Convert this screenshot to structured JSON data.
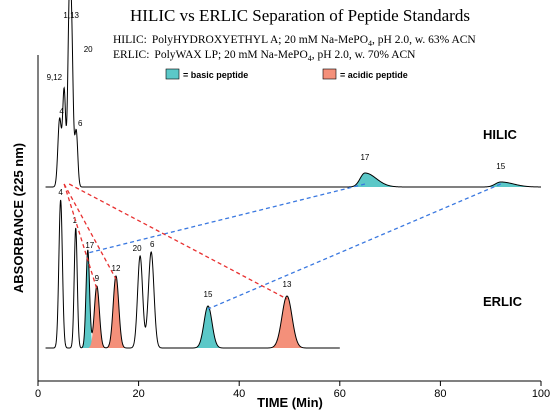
{
  "title": "HILIC vs ERLIC Separation of Peptide Standards",
  "conditions": {
    "hilic": {
      "prefix": "HILIC:",
      "text_a": "PolyHYDROXYETHYL A; 20 mM Na-MePO",
      "sub": "4",
      "text_b": ", pH 2.0, w. 63% ACN"
    },
    "erlic": {
      "prefix": "ERLIC:",
      "text_a": "PolyWAX LP; 20 mM Na-MePO",
      "sub": "4",
      "text_b": ", pH 2.0, w. 70% ACN"
    }
  },
  "legend": [
    {
      "label": "= basic peptide",
      "color": "#5bc8c8"
    },
    {
      "label": "= acidic peptide",
      "color": "#f4907a"
    }
  ],
  "colors": {
    "trace": "#000000",
    "hilic_link": "#e83030",
    "erlic_link": "#3a78e0"
  },
  "chart_data": {
    "type": "line",
    "xlabel": "TIME (Min)",
    "ylabel": "ABSORBANCE (225 nm)",
    "xlim": [
      0,
      100
    ],
    "xticks": [
      0,
      20,
      40,
      60,
      80,
      100
    ],
    "series": [
      {
        "name": "HILIC",
        "x_end": 100,
        "peaks": [
          {
            "label": "4",
            "t": 4.3,
            "h": 0.34,
            "w": 0.35,
            "type": "neutral"
          },
          {
            "label": "9,12",
            "t": 5.2,
            "h": 0.48,
            "w": 0.3,
            "type": "neutral"
          },
          {
            "label": "1,13",
            "t": 6.2,
            "h": 0.81,
            "w": 0.3,
            "type": "neutral"
          },
          {
            "label": "20",
            "t": 6.7,
            "h": 0.67,
            "w": 0.3,
            "type": "neutral"
          },
          {
            "label": "6",
            "t": 7.6,
            "h": 0.28,
            "w": 0.3,
            "type": "neutral"
          },
          {
            "label": "17",
            "t": 65,
            "h": 0.07,
            "w": 1.6,
            "type": "basic"
          },
          {
            "label": "15",
            "t": 92,
            "h": 0.025,
            "w": 1.8,
            "type": "basic"
          }
        ]
      },
      {
        "name": "ERLIC",
        "x_end": 60,
        "peaks": [
          {
            "label": "4",
            "t": 4.5,
            "h": 0.74,
            "w": 0.35,
            "type": "neutral"
          },
          {
            "label": "1",
            "t": 7.5,
            "h": 0.6,
            "w": 0.3,
            "type": "neutral"
          },
          {
            "label": "17",
            "t": 9.9,
            "h": 0.49,
            "w": 0.35,
            "type": "basic"
          },
          {
            "label": "9",
            "t": 11.7,
            "h": 0.31,
            "w": 0.5,
            "type": "acidic"
          },
          {
            "label": "12",
            "t": 15.5,
            "h": 0.36,
            "w": 0.55,
            "type": "acidic"
          },
          {
            "label": "20",
            "t": 20.3,
            "h": 0.46,
            "w": 0.5,
            "type": "neutral"
          },
          {
            "label": "6",
            "t": 22.5,
            "h": 0.48,
            "w": 0.55,
            "type": "neutral"
          },
          {
            "label": "15",
            "t": 33.8,
            "h": 0.21,
            "w": 0.8,
            "type": "basic"
          },
          {
            "label": "13",
            "t": 49.5,
            "h": 0.26,
            "w": 1.0,
            "type": "acidic"
          }
        ]
      }
    ],
    "links": [
      {
        "peptide": "17",
        "from": 65,
        "to": 9.9,
        "type": "basic"
      },
      {
        "peptide": "15",
        "from": 92,
        "to": 33.8,
        "type": "basic"
      },
      {
        "peptide": "9",
        "from": 5.2,
        "to": 11.7,
        "type": "acidic"
      },
      {
        "peptide": "12",
        "from": 5.2,
        "to": 15.5,
        "type": "acidic"
      },
      {
        "peptide": "13",
        "from": 6.2,
        "to": 49.5,
        "type": "acidic"
      }
    ]
  }
}
